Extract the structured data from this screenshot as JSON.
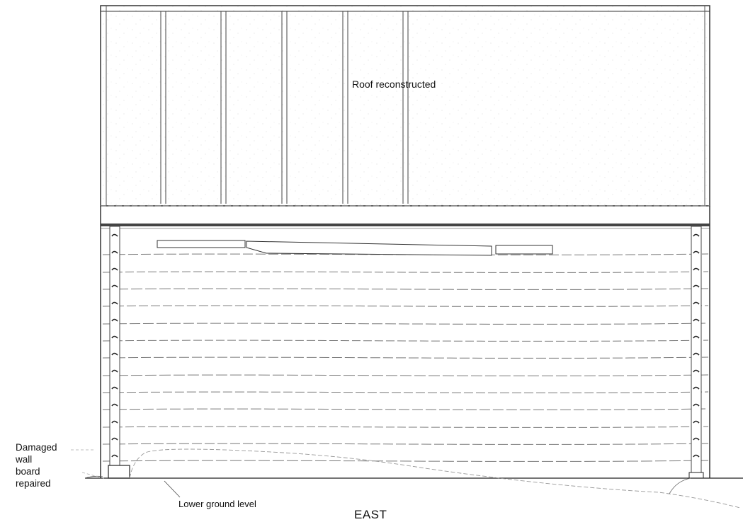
{
  "labels": {
    "roof": "Roof reconstructed",
    "damaged_wall": "Damaged\nwall\nboard\nrepaired",
    "ground": "Lower ground level",
    "view": "EAST"
  },
  "colors": {
    "line": "#222222",
    "faint": "#999999",
    "background": "#ffffff"
  }
}
